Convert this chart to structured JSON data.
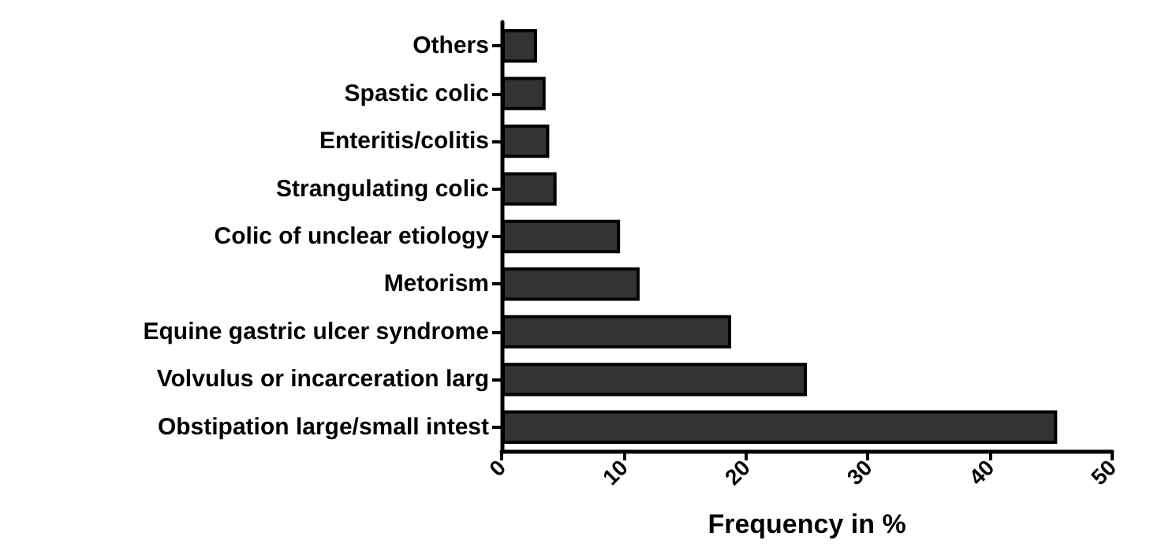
{
  "chart_data": {
    "type": "bar",
    "orientation": "horizontal",
    "xlabel": "Frequency in %",
    "categories": [
      "Others",
      "Spastic colic",
      "Enteritis/colitis",
      "Strangulating colic",
      "Colic of unclear etiology",
      "Metorism",
      "Equine gastric ulcer syndrome",
      "Volvulus or incarceration larg",
      "Obstipation large/small intest"
    ],
    "values": [
      2.9,
      3.6,
      3.9,
      4.5,
      9.7,
      11.3,
      18.8,
      25.0,
      45.5
    ],
    "color": "#333333",
    "xlim": [
      0,
      50
    ],
    "xticks": [
      0,
      10,
      20,
      30,
      40,
      50
    ],
    "grid": false
  }
}
